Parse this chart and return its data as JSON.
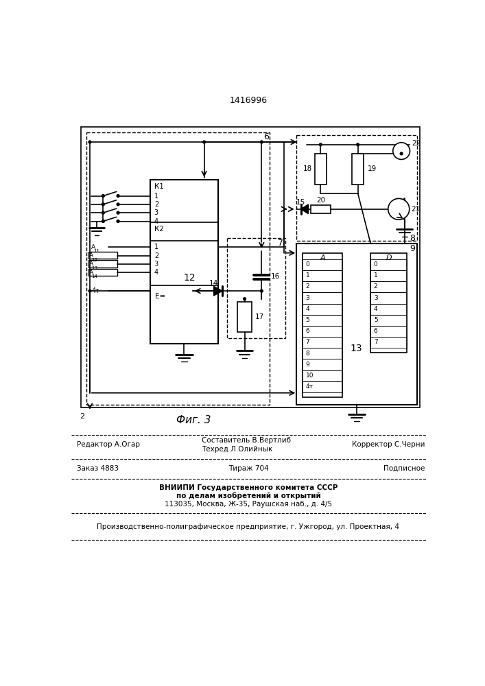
{
  "title": "1416996",
  "fig_label": "Фиг. 3",
  "footer": {
    "line1_left": "Редактор А.Огар",
    "line1_center_top": "Составитель В.Вертлиб",
    "line1_center_bot": "Техред Л.Олийнык",
    "line1_right": "Корректор С.Черни",
    "line2_left": "Заказ 4883",
    "line2_center": "Тираж 704",
    "line2_right": "Подписное",
    "line3": "ВНИИПИ Государственного комитета СССР",
    "line4": "по делам изобретений и открытий",
    "line5": "113035, Москва, Ж-35, Раушская наб., д. 4/5",
    "line6": "Производственно-полиграфическое предприятие, г. Ужгород, ул. Проектная, 4"
  }
}
